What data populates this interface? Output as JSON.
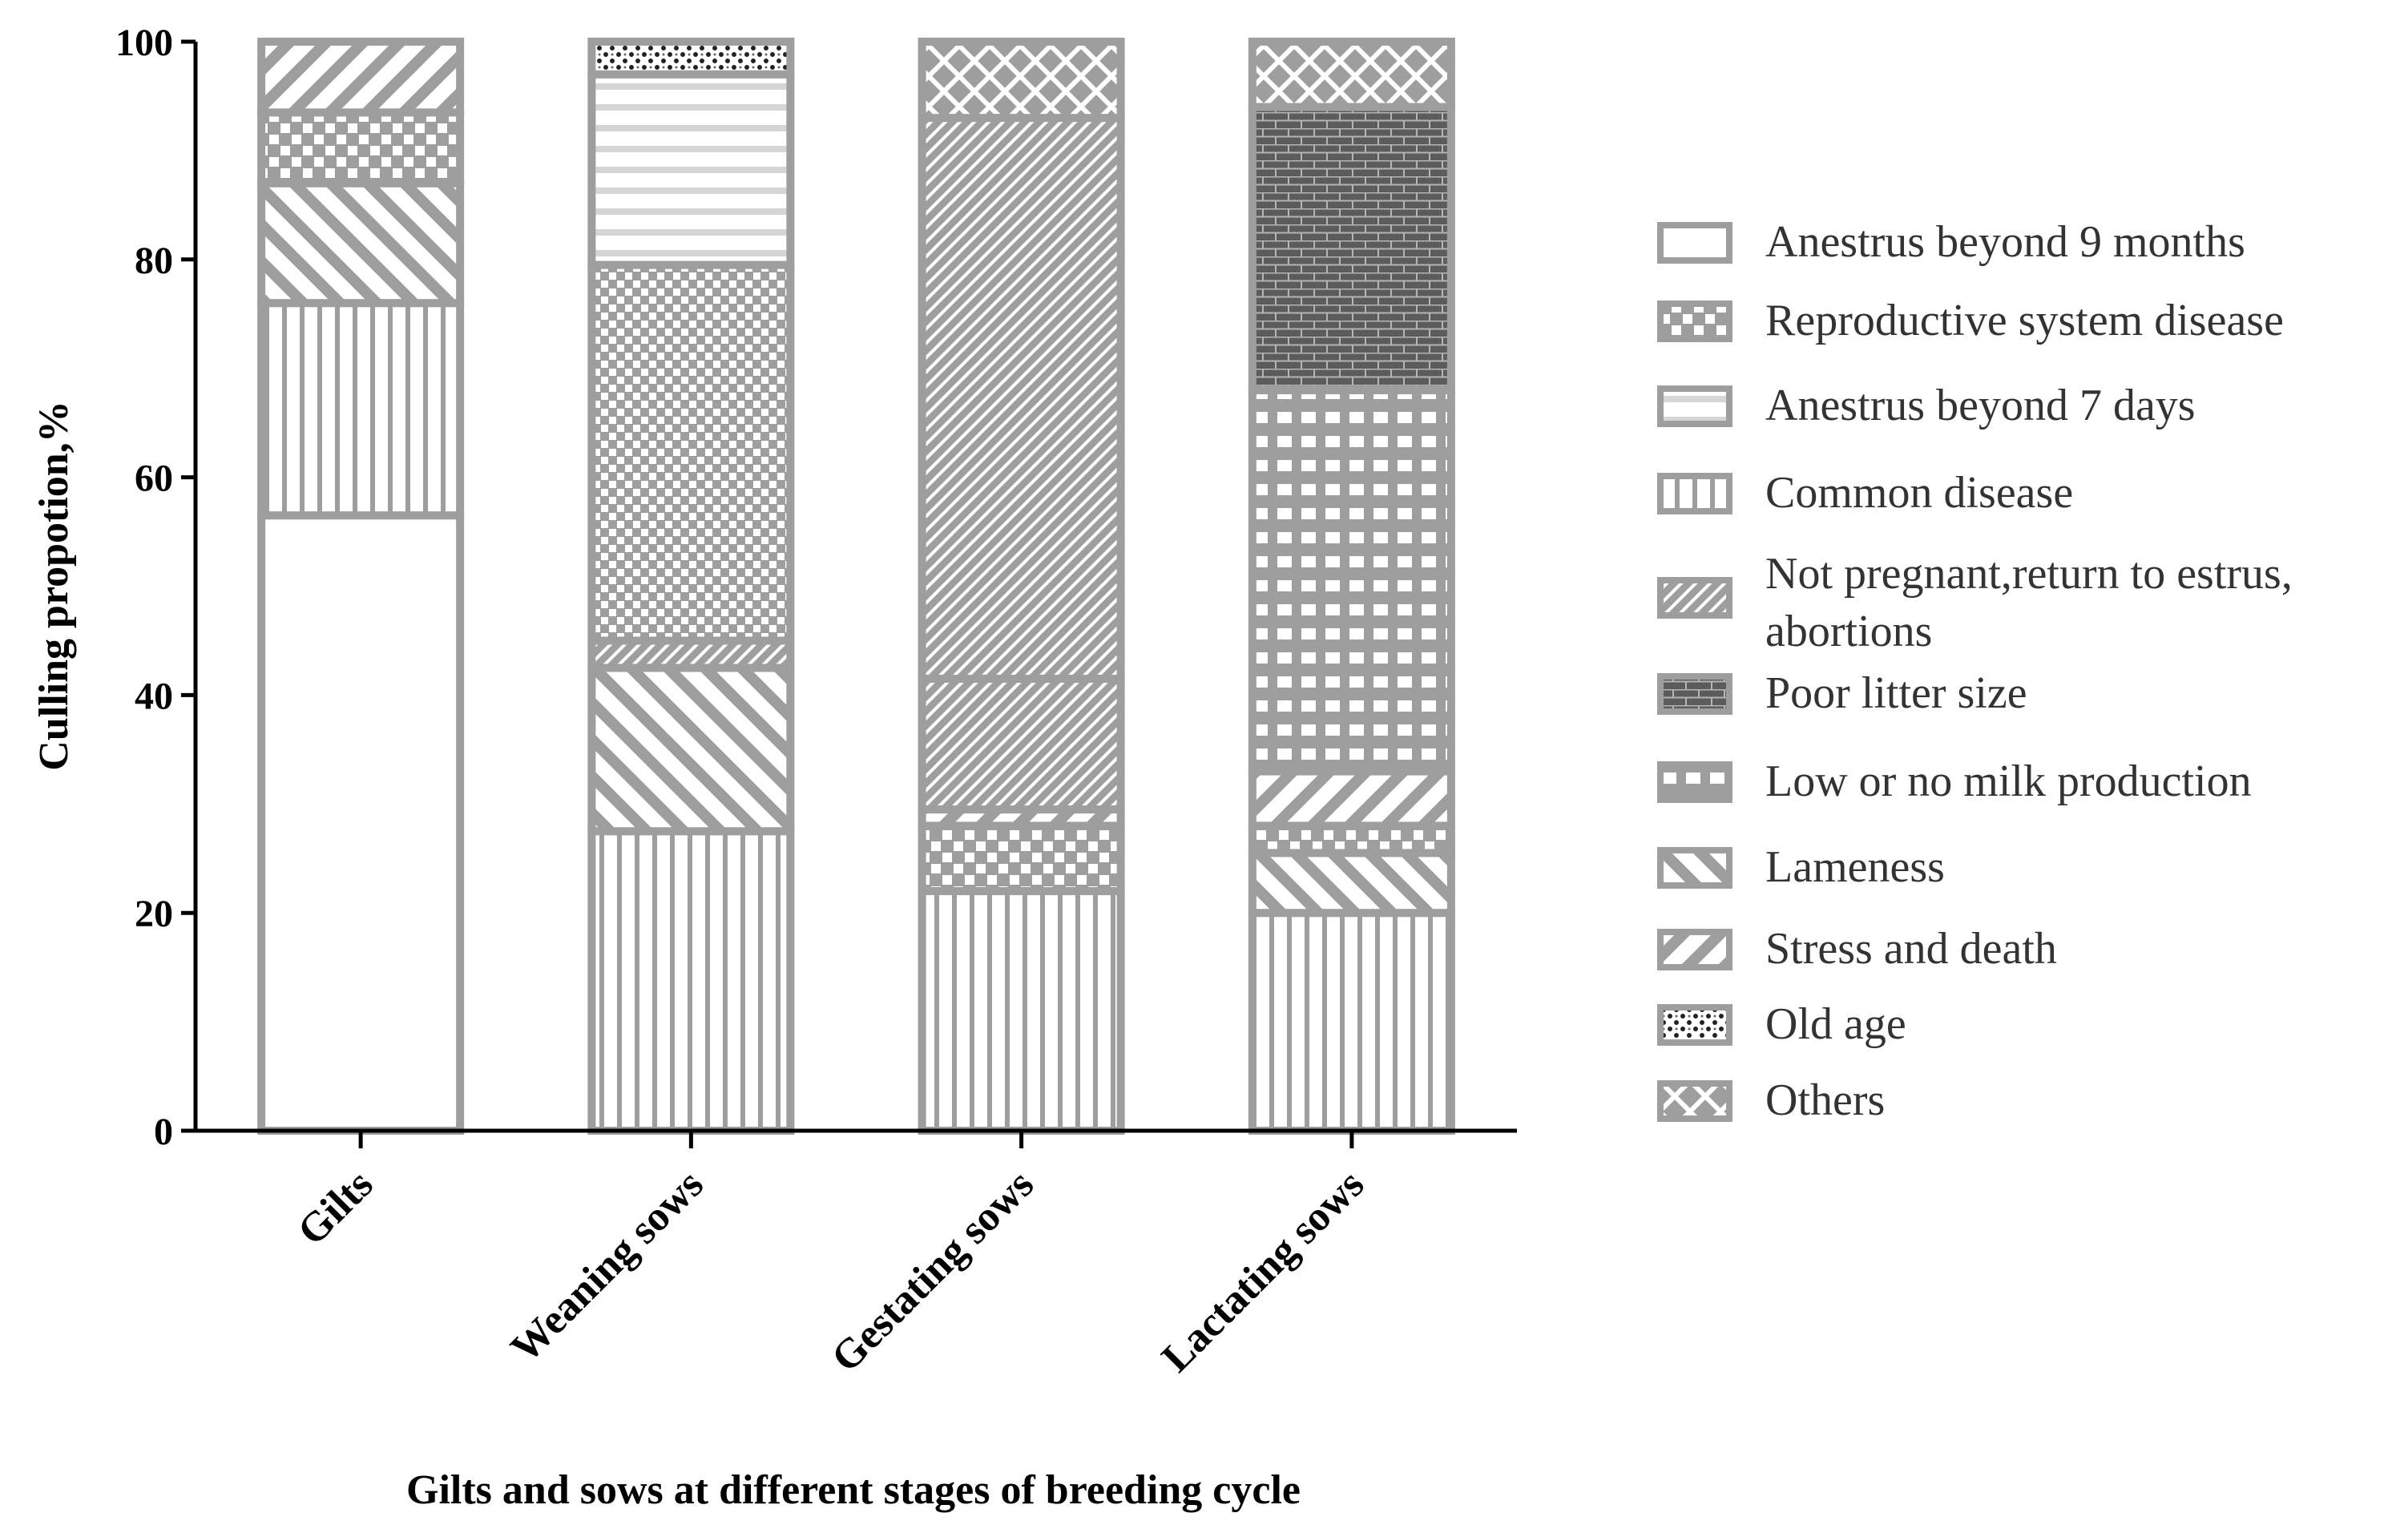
{
  "chart_data": {
    "type": "bar",
    "stacked": true,
    "ylabel": "Culling propotion,%",
    "xlabel": "Gilts and sows at different stages of breeding cycle",
    "ylim": [
      0,
      100
    ],
    "yticks": [
      0,
      20,
      40,
      60,
      80,
      100
    ],
    "categories": [
      "Gilts",
      "Weaning sows",
      "Gestating sows",
      "Lactating sows"
    ],
    "legend_position": "right",
    "series": [
      {
        "name": "Anestrus beyond 9 months",
        "pattern": "none",
        "values": [
          56.5,
          0,
          0,
          0
        ]
      },
      {
        "name": "Common disease",
        "pattern": "vertical",
        "values": [
          19.5,
          27.5,
          22,
          20
        ]
      },
      {
        "name": "Lameness",
        "pattern": "backslash",
        "values": [
          11,
          15,
          0,
          5.5
        ]
      },
      {
        "name": "Reproductive system disease",
        "pattern": "coarse-check",
        "values": [
          6.5,
          0,
          6,
          2.5
        ]
      },
      {
        "name": "Stress and death",
        "pattern": "forward-slash",
        "values": [
          6.5,
          0,
          1.5,
          5
        ]
      },
      {
        "name": "Not pregnant,return to estrus,abortions",
        "pattern": "fine-diagonal",
        "values": [
          0,
          2.5,
          12,
          0
        ]
      },
      {
        "name": "Not pregnant,return to estrus,abortions (b)",
        "pattern": "fine-check",
        "values": [
          0,
          34.5,
          0,
          0
        ]
      },
      {
        "name": "Not pregnant,return to estrus,abortions (c)",
        "pattern": "fine-diagonal",
        "values": [
          0,
          0,
          51.5,
          0
        ]
      },
      {
        "name": "Low or no milk production",
        "pattern": "grid",
        "values": [
          0,
          0,
          0,
          35
        ]
      },
      {
        "name": "Poor litter size",
        "pattern": "brick",
        "values": [
          0,
          0,
          0,
          26
        ]
      },
      {
        "name": "Anestrus beyond 7 days",
        "pattern": "horizontal",
        "values": [
          0,
          17.5,
          0,
          0
        ]
      },
      {
        "name": "Old age",
        "pattern": "speckle",
        "values": [
          0,
          3,
          0,
          0
        ]
      },
      {
        "name": "Others",
        "pattern": "cross",
        "values": [
          0,
          0,
          7,
          6
        ]
      }
    ],
    "legend": [
      {
        "label": "Anestrus beyond 9 months",
        "pattern": "none"
      },
      {
        "label": "Reproductive system disease",
        "pattern": "coarse-check"
      },
      {
        "label": "Anestrus beyond 7 days",
        "pattern": "horizontal"
      },
      {
        "label": "Common disease",
        "pattern": "vertical"
      },
      {
        "label": "Not pregnant,return to estrus,",
        "label2": "abortions",
        "pattern": "fine-diagonal"
      },
      {
        "label": "Poor litter size",
        "pattern": "brick"
      },
      {
        "label": "Low or no milk production",
        "pattern": "grid"
      },
      {
        "label": "Lameness",
        "pattern": "backslash"
      },
      {
        "label": "Stress and death",
        "pattern": "forward-slash"
      },
      {
        "label": "Old age",
        "pattern": "speckle"
      },
      {
        "label": "Others",
        "pattern": "cross"
      }
    ]
  }
}
